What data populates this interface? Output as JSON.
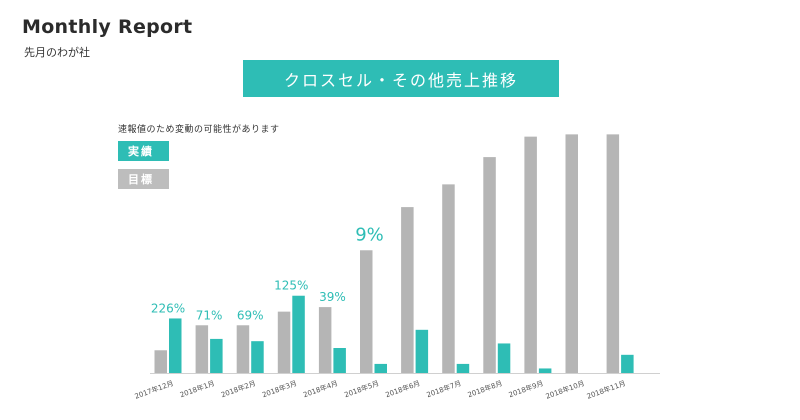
{
  "header": {
    "title": "Monthly Report",
    "subtitle": "先月のわが社"
  },
  "banner": {
    "text": "クロスセル・その他売上推移"
  },
  "note": "速報値のため変動の可能性があります",
  "legend": {
    "actual": "実績",
    "target": "目標"
  },
  "colors": {
    "actual": "#2ebdb5",
    "target": "#b5b5b5",
    "label": "#2ebdb5"
  },
  "chart_data": {
    "type": "bar",
    "categories": [
      "2017年12月",
      "2018年1月",
      "2018年2月",
      "2018年3月",
      "2018年4月",
      "2018年5月",
      "2018年6月",
      "2018年7月",
      "2018年8月",
      "2018年9月",
      "2018年10月",
      "2018年11月"
    ],
    "series": [
      {
        "name": "目標",
        "values": [
          10,
          21,
          21,
          27,
          29,
          54,
          73,
          83,
          95,
          104,
          105,
          105
        ]
      },
      {
        "name": "実績",
        "values": [
          24,
          15,
          14,
          34,
          11,
          4,
          19,
          4,
          13,
          2,
          0,
          8
        ]
      }
    ],
    "data_labels": [
      "226%",
      "71%",
      "69%",
      "125%",
      "39%",
      "9%",
      "",
      "",
      "",
      "",
      "",
      ""
    ],
    "ylim": [
      0,
      110
    ],
    "grid": false,
    "legend_position": "top-left"
  }
}
